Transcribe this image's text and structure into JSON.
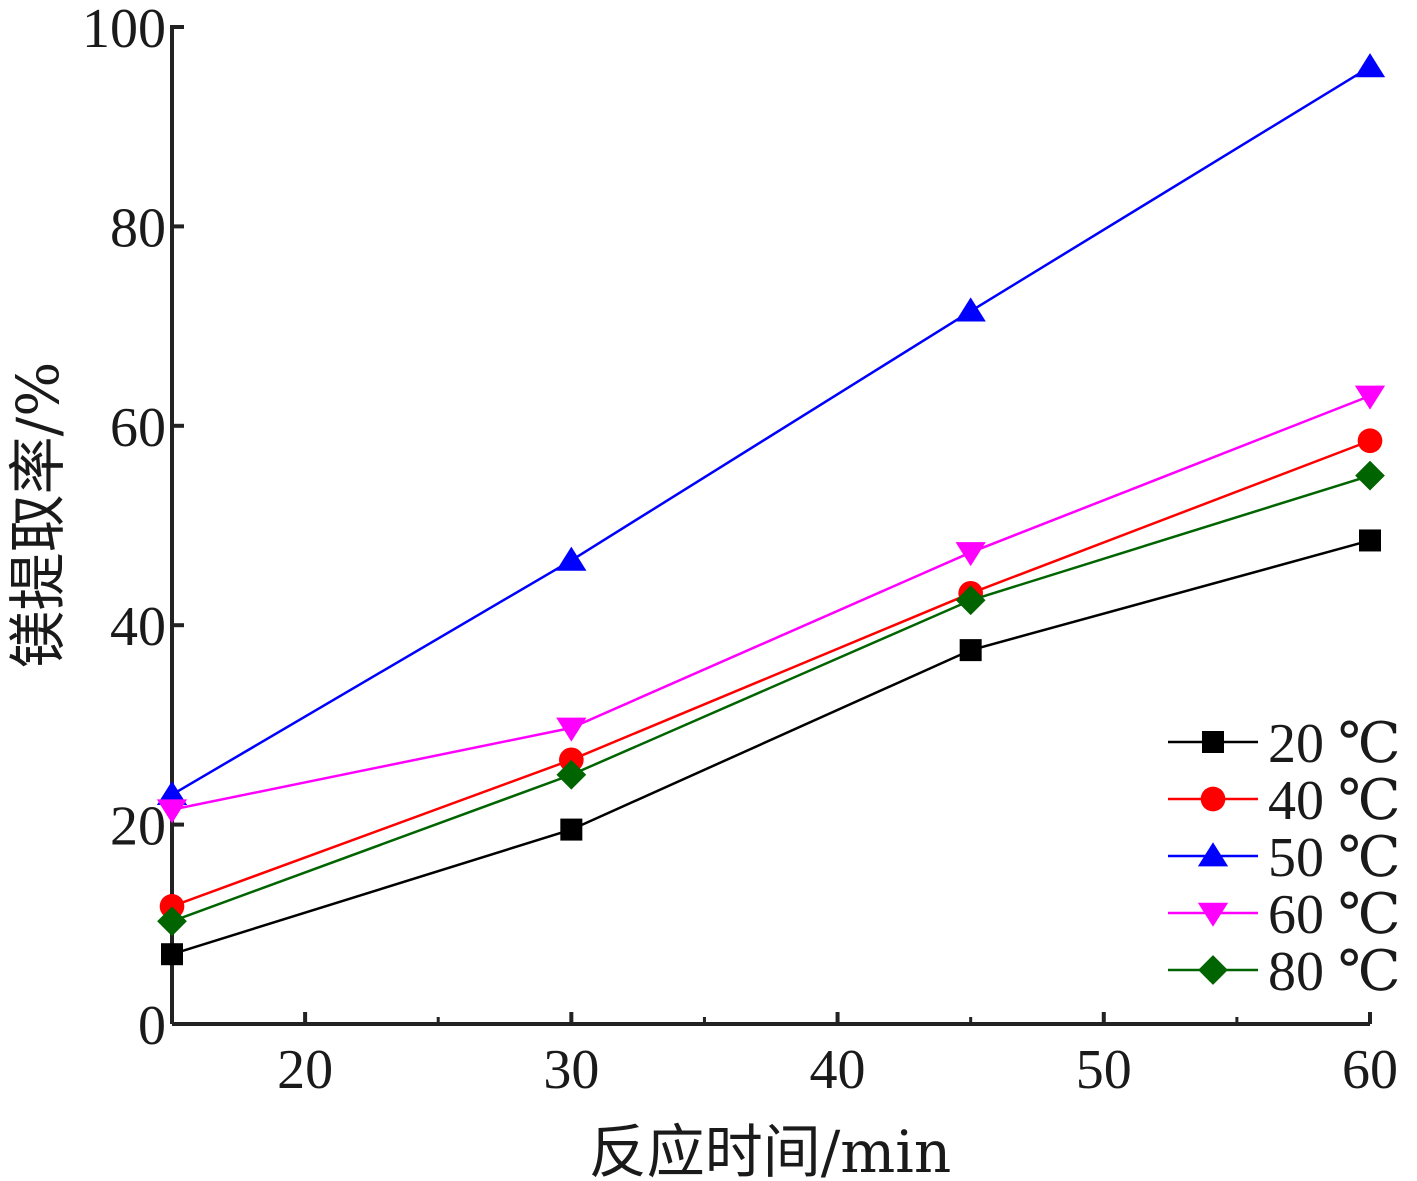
{
  "chart_data": {
    "type": "line",
    "title": "",
    "xlabel": "反应时间/min",
    "ylabel": "镁提取率/%",
    "xlim": [
      15,
      60
    ],
    "ylim": [
      0,
      100
    ],
    "x_ticks": [
      20,
      30,
      40,
      50,
      60
    ],
    "x_tick_labels": [
      "20",
      "30",
      "40",
      "50",
      "60"
    ],
    "y_ticks": [
      0,
      20,
      40,
      60,
      80,
      100
    ],
    "y_tick_labels": [
      "0",
      "20",
      "40",
      "60",
      "80",
      "100"
    ],
    "grid": false,
    "legend_position": "bottom-right",
    "x": [
      15,
      30,
      45,
      60
    ],
    "series": [
      {
        "name": "20 ℃",
        "values": [
          7.0,
          19.5,
          37.5,
          48.5
        ],
        "color": "#000000",
        "marker": "square"
      },
      {
        "name": "40 ℃",
        "values": [
          11.8,
          26.5,
          43.2,
          58.5
        ],
        "color": "#ff0000",
        "marker": "circle"
      },
      {
        "name": "50 ℃",
        "values": [
          23.0,
          46.5,
          71.5,
          96.0
        ],
        "color": "#0000ff",
        "marker": "triangle-up"
      },
      {
        "name": "60 ℃",
        "values": [
          21.5,
          29.7,
          47.3,
          63.0
        ],
        "color": "#ff00ff",
        "marker": "triangle-down"
      },
      {
        "name": "80 ℃",
        "values": [
          10.3,
          25.0,
          42.5,
          55.0
        ],
        "color": "#006400",
        "marker": "diamond"
      }
    ]
  }
}
